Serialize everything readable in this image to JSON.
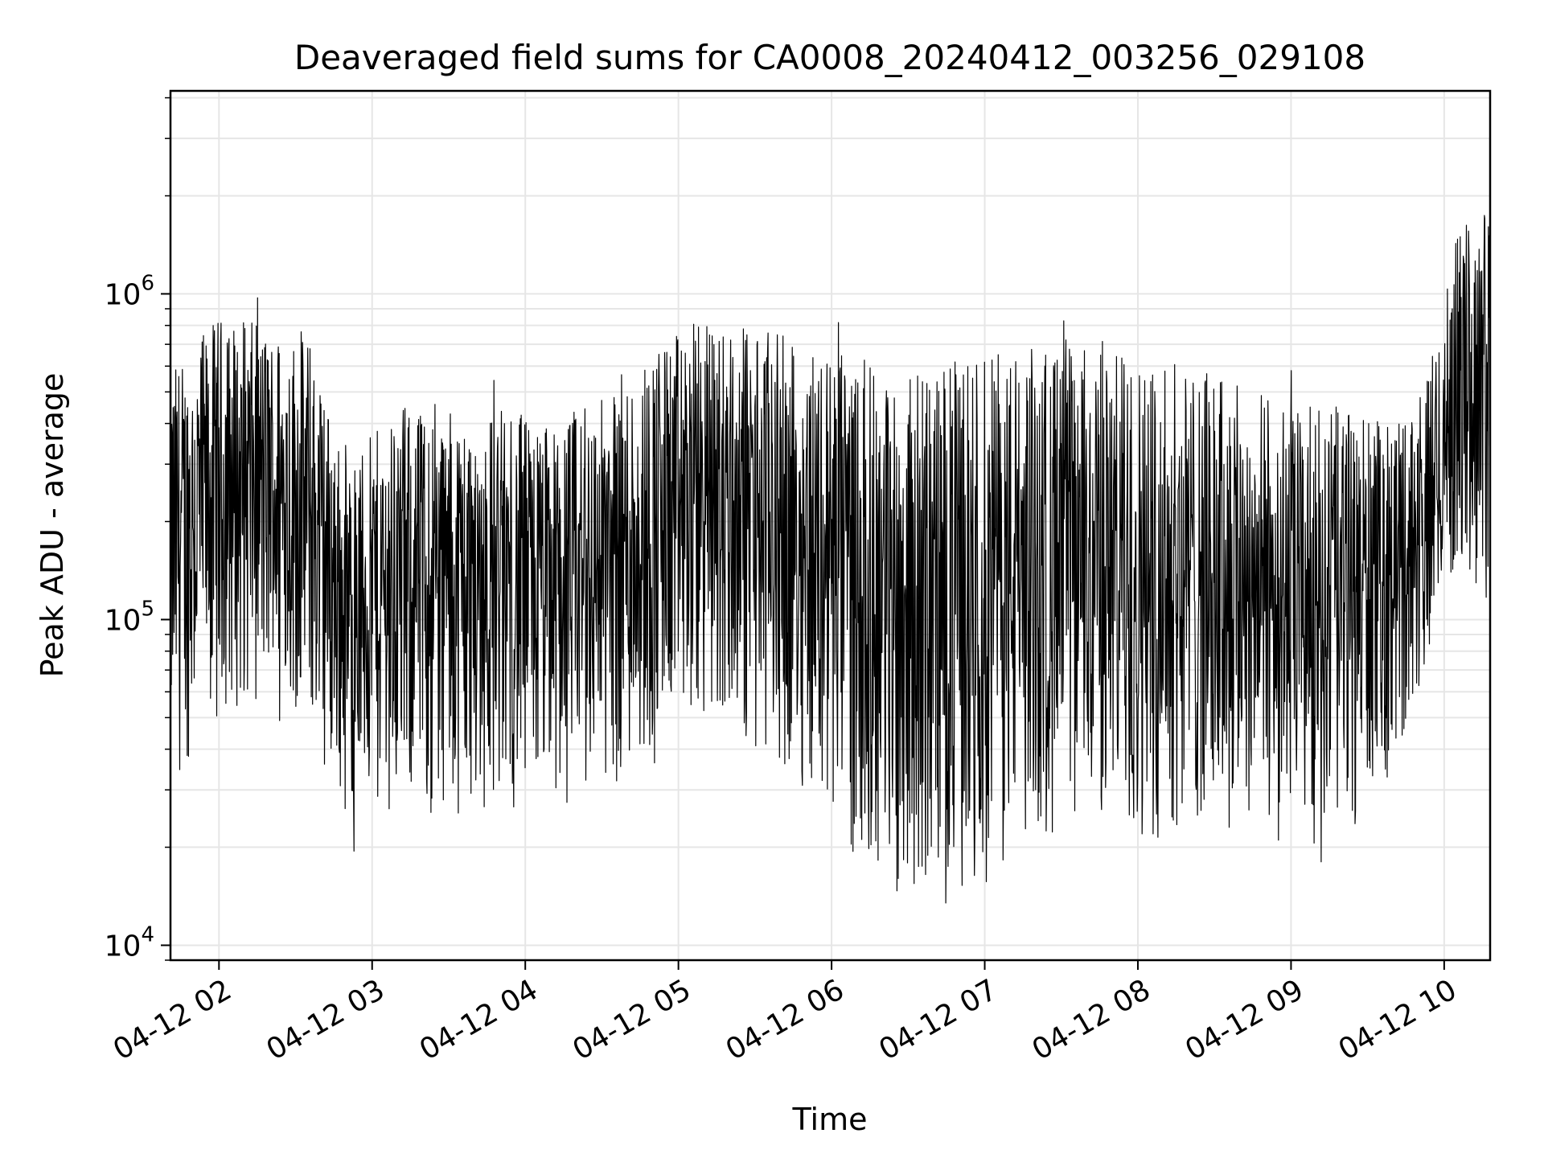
{
  "chart_data": {
    "type": "line",
    "title": "Deaveraged field sums for CA0008_20240412_003256_029108",
    "xlabel": "Time",
    "ylabel": "Peak ADU - average",
    "y_scale": "log",
    "ylim": [
      9000,
      4200000
    ],
    "xlim": [
      "2024-04-12 01:41",
      "2024-04-12 10:18"
    ],
    "x_ticks": [
      {
        "value": "2024-04-12 02:00",
        "label": "04-12 02"
      },
      {
        "value": "2024-04-12 03:00",
        "label": "04-12 03"
      },
      {
        "value": "2024-04-12 04:00",
        "label": "04-12 04"
      },
      {
        "value": "2024-04-12 05:00",
        "label": "04-12 05"
      },
      {
        "value": "2024-04-12 06:00",
        "label": "04-12 06"
      },
      {
        "value": "2024-04-12 07:00",
        "label": "04-12 07"
      },
      {
        "value": "2024-04-12 08:00",
        "label": "04-12 08"
      },
      {
        "value": "2024-04-12 09:00",
        "label": "04-12 09"
      },
      {
        "value": "2024-04-12 10:00",
        "label": "04-12 10"
      }
    ],
    "y_ticks": [
      {
        "value": 10000,
        "base": "10",
        "exp": "4"
      },
      {
        "value": 100000,
        "base": "10",
        "exp": "5"
      },
      {
        "value": 1000000,
        "base": "10",
        "exp": "6"
      }
    ],
    "grid": true,
    "line_color": "#000000",
    "grid_color": "#e6e6e6",
    "legend": "none",
    "envelope": {
      "x": [
        "2024-04-12 01:41",
        "2024-04-12 02:00",
        "2024-04-12 02:20",
        "2024-04-12 02:35",
        "2024-04-12 02:50",
        "2024-04-12 03:10",
        "2024-04-12 03:30",
        "2024-04-12 03:50",
        "2024-04-12 04:10",
        "2024-04-12 04:30",
        "2024-04-12 04:50",
        "2024-04-12 05:10",
        "2024-04-12 05:30",
        "2024-04-12 05:50",
        "2024-04-12 06:10",
        "2024-04-12 06:25",
        "2024-04-12 06:40",
        "2024-04-12 07:00",
        "2024-04-12 07:20",
        "2024-04-12 07:40",
        "2024-04-12 08:00",
        "2024-04-12 08:20",
        "2024-04-12 08:40",
        "2024-04-12 09:00",
        "2024-04-12 09:20",
        "2024-04-12 09:40",
        "2024-04-12 09:52",
        "2024-04-12 10:05",
        "2024-04-12 10:18"
      ],
      "low": [
        30000,
        50000,
        55000,
        45000,
        25000,
        25000,
        25000,
        25000,
        25000,
        30000,
        35000,
        45000,
        40000,
        30000,
        18000,
        14000,
        14000,
        16000,
        20000,
        22000,
        20000,
        22000,
        22000,
        20000,
        20000,
        35000,
        60000,
        150000,
        100000
      ],
      "high": [
        600000,
        850000,
        800000,
        750000,
        300000,
        450000,
        450000,
        450000,
        400000,
        500000,
        700000,
        850000,
        800000,
        700000,
        650000,
        550000,
        600000,
        650000,
        700000,
        700000,
        650000,
        600000,
        550000,
        450000,
        450000,
        400000,
        500000,
        1500000,
        2000000
      ]
    }
  }
}
